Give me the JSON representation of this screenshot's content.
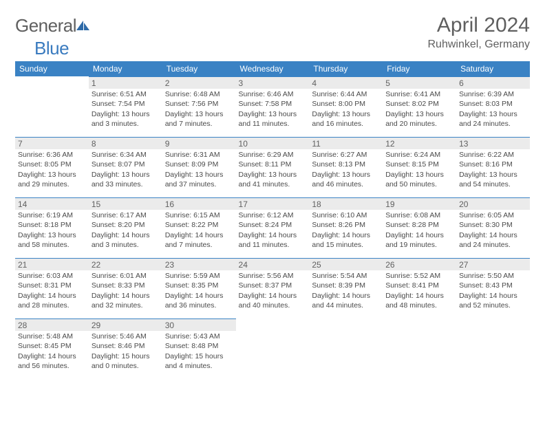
{
  "logo": {
    "part1": "General",
    "part2": "Blue"
  },
  "title": "April 2024",
  "location": "Ruhwinkel, Germany",
  "colors": {
    "header_bg": "#3a82c4",
    "header_text": "#ffffff",
    "daynum_bg": "#ebebeb",
    "daynum_border": "#3a82c4",
    "body_text": "#4a4a4a",
    "title_text": "#5f5f5f"
  },
  "typography": {
    "title_fontsize": 30,
    "location_fontsize": 16,
    "header_fontsize": 12,
    "daynum_fontsize": 12,
    "body_fontsize": 10.5
  },
  "day_headers": [
    "Sunday",
    "Monday",
    "Tuesday",
    "Wednesday",
    "Thursday",
    "Friday",
    "Saturday"
  ],
  "weeks": [
    [
      null,
      {
        "n": "1",
        "sr": "6:51 AM",
        "ss": "7:54 PM",
        "dl1": "13 hours",
        "dl2": "and 3 minutes."
      },
      {
        "n": "2",
        "sr": "6:48 AM",
        "ss": "7:56 PM",
        "dl1": "13 hours",
        "dl2": "and 7 minutes."
      },
      {
        "n": "3",
        "sr": "6:46 AM",
        "ss": "7:58 PM",
        "dl1": "13 hours",
        "dl2": "and 11 minutes."
      },
      {
        "n": "4",
        "sr": "6:44 AM",
        "ss": "8:00 PM",
        "dl1": "13 hours",
        "dl2": "and 16 minutes."
      },
      {
        "n": "5",
        "sr": "6:41 AM",
        "ss": "8:02 PM",
        "dl1": "13 hours",
        "dl2": "and 20 minutes."
      },
      {
        "n": "6",
        "sr": "6:39 AM",
        "ss": "8:03 PM",
        "dl1": "13 hours",
        "dl2": "and 24 minutes."
      }
    ],
    [
      {
        "n": "7",
        "sr": "6:36 AM",
        "ss": "8:05 PM",
        "dl1": "13 hours",
        "dl2": "and 29 minutes."
      },
      {
        "n": "8",
        "sr": "6:34 AM",
        "ss": "8:07 PM",
        "dl1": "13 hours",
        "dl2": "and 33 minutes."
      },
      {
        "n": "9",
        "sr": "6:31 AM",
        "ss": "8:09 PM",
        "dl1": "13 hours",
        "dl2": "and 37 minutes."
      },
      {
        "n": "10",
        "sr": "6:29 AM",
        "ss": "8:11 PM",
        "dl1": "13 hours",
        "dl2": "and 41 minutes."
      },
      {
        "n": "11",
        "sr": "6:27 AM",
        "ss": "8:13 PM",
        "dl1": "13 hours",
        "dl2": "and 46 minutes."
      },
      {
        "n": "12",
        "sr": "6:24 AM",
        "ss": "8:15 PM",
        "dl1": "13 hours",
        "dl2": "and 50 minutes."
      },
      {
        "n": "13",
        "sr": "6:22 AM",
        "ss": "8:16 PM",
        "dl1": "13 hours",
        "dl2": "and 54 minutes."
      }
    ],
    [
      {
        "n": "14",
        "sr": "6:19 AM",
        "ss": "8:18 PM",
        "dl1": "13 hours",
        "dl2": "and 58 minutes."
      },
      {
        "n": "15",
        "sr": "6:17 AM",
        "ss": "8:20 PM",
        "dl1": "14 hours",
        "dl2": "and 3 minutes."
      },
      {
        "n": "16",
        "sr": "6:15 AM",
        "ss": "8:22 PM",
        "dl1": "14 hours",
        "dl2": "and 7 minutes."
      },
      {
        "n": "17",
        "sr": "6:12 AM",
        "ss": "8:24 PM",
        "dl1": "14 hours",
        "dl2": "and 11 minutes."
      },
      {
        "n": "18",
        "sr": "6:10 AM",
        "ss": "8:26 PM",
        "dl1": "14 hours",
        "dl2": "and 15 minutes."
      },
      {
        "n": "19",
        "sr": "6:08 AM",
        "ss": "8:28 PM",
        "dl1": "14 hours",
        "dl2": "and 19 minutes."
      },
      {
        "n": "20",
        "sr": "6:05 AM",
        "ss": "8:30 PM",
        "dl1": "14 hours",
        "dl2": "and 24 minutes."
      }
    ],
    [
      {
        "n": "21",
        "sr": "6:03 AM",
        "ss": "8:31 PM",
        "dl1": "14 hours",
        "dl2": "and 28 minutes."
      },
      {
        "n": "22",
        "sr": "6:01 AM",
        "ss": "8:33 PM",
        "dl1": "14 hours",
        "dl2": "and 32 minutes."
      },
      {
        "n": "23",
        "sr": "5:59 AM",
        "ss": "8:35 PM",
        "dl1": "14 hours",
        "dl2": "and 36 minutes."
      },
      {
        "n": "24",
        "sr": "5:56 AM",
        "ss": "8:37 PM",
        "dl1": "14 hours",
        "dl2": "and 40 minutes."
      },
      {
        "n": "25",
        "sr": "5:54 AM",
        "ss": "8:39 PM",
        "dl1": "14 hours",
        "dl2": "and 44 minutes."
      },
      {
        "n": "26",
        "sr": "5:52 AM",
        "ss": "8:41 PM",
        "dl1": "14 hours",
        "dl2": "and 48 minutes."
      },
      {
        "n": "27",
        "sr": "5:50 AM",
        "ss": "8:43 PM",
        "dl1": "14 hours",
        "dl2": "and 52 minutes."
      }
    ],
    [
      {
        "n": "28",
        "sr": "5:48 AM",
        "ss": "8:45 PM",
        "dl1": "14 hours",
        "dl2": "and 56 minutes."
      },
      {
        "n": "29",
        "sr": "5:46 AM",
        "ss": "8:46 PM",
        "dl1": "15 hours",
        "dl2": "and 0 minutes."
      },
      {
        "n": "30",
        "sr": "5:43 AM",
        "ss": "8:48 PM",
        "dl1": "15 hours",
        "dl2": "and 4 minutes."
      },
      null,
      null,
      null,
      null
    ]
  ],
  "labels": {
    "sunrise_prefix": "Sunrise: ",
    "sunset_prefix": "Sunset: ",
    "daylight_prefix": "Daylight: "
  }
}
